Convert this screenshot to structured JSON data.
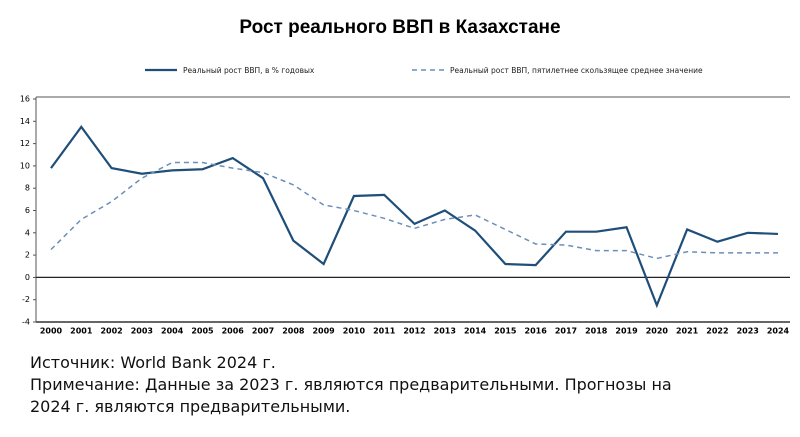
{
  "chart_data": {
    "type": "line",
    "title": "Рост реального ВВП в Казахстане",
    "categories": [
      "2000",
      "2001",
      "2002",
      "2003",
      "2004",
      "2005",
      "2006",
      "2007",
      "2008",
      "2009",
      "2010",
      "2011",
      "2012",
      "2013",
      "2014",
      "2015",
      "2016",
      "2017",
      "2018",
      "2019",
      "2020",
      "2021",
      "2022",
      "2023",
      "2024"
    ],
    "series": [
      {
        "name": "Реальный рост ВВП, в % годовых",
        "color": "#1f4e79",
        "dashed": false,
        "values": [
          9.8,
          13.5,
          9.8,
          9.3,
          9.6,
          9.7,
          10.7,
          8.9,
          3.3,
          1.2,
          7.3,
          7.4,
          4.8,
          6.0,
          4.2,
          1.2,
          1.1,
          4.1,
          4.1,
          4.5,
          -2.5,
          4.3,
          3.2,
          4.0,
          3.9
        ]
      },
      {
        "name": "Реальный рост ВВП, пятилетнее скользящее среднее значение",
        "color": "#6b8fb8",
        "dashed": true,
        "values": [
          2.5,
          5.2,
          6.8,
          8.9,
          10.3,
          10.3,
          9.8,
          9.4,
          8.3,
          6.5,
          6.0,
          5.3,
          4.4,
          5.2,
          5.6,
          4.3,
          3.0,
          2.9,
          2.4,
          2.4,
          1.7,
          2.3,
          2.2,
          2.2,
          2.2
        ]
      }
    ],
    "ylim": [
      -4,
      16
    ],
    "yticks": [
      -4,
      -2,
      0,
      2,
      4,
      6,
      8,
      10,
      12,
      14,
      16
    ],
    "grid": false,
    "source": "Источник: World Bank 2024 г.",
    "note": "Примечание: Данные за 2023 г. являются предварительными. Прогнозы на 2024 г. являются предварительными."
  }
}
